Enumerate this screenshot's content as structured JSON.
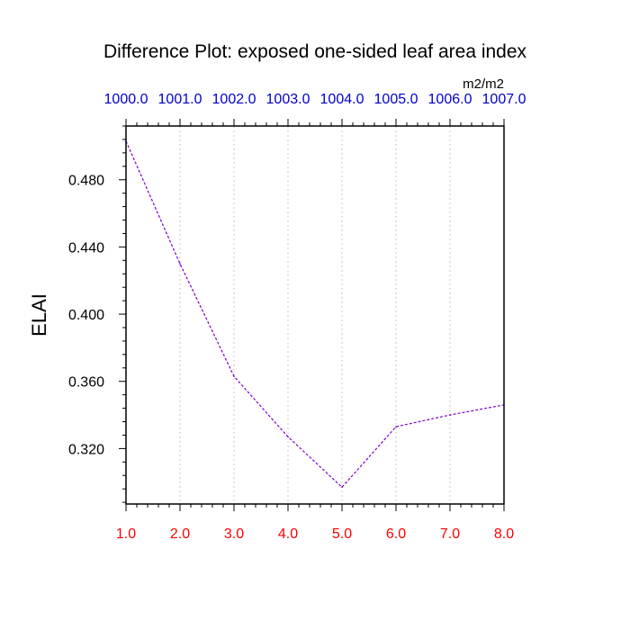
{
  "chart_data": {
    "type": "line",
    "title": "Difference Plot: exposed one-sided leaf area index",
    "units": "m2/m2",
    "ylabel": "ELAI",
    "xlabel": "",
    "x": [
      1.0,
      2.0,
      3.0,
      4.0,
      5.0,
      6.0,
      7.0,
      8.0
    ],
    "xlim": [
      1.0,
      8.0
    ],
    "ylim": [
      0.287,
      0.512
    ],
    "bottom_ticks": [
      "1.0",
      "2.0",
      "3.0",
      "4.0",
      "5.0",
      "6.0",
      "7.0",
      "8.0"
    ],
    "top_ticks": [
      "1000.0",
      "1001.0",
      "1002.0",
      "1003.0",
      "1004.0",
      "1005.0",
      "1006.0",
      "1007.0"
    ],
    "y_ticks": [
      0.32,
      0.36,
      0.4,
      0.44,
      0.48
    ],
    "y_tick_labels": [
      "0.320",
      "0.360",
      "0.400",
      "0.440",
      "0.480"
    ],
    "grid": "vertical dotted",
    "series": [
      {
        "values": [
          0.503,
          0.43,
          0.363,
          0.327,
          0.297,
          0.333,
          0.34,
          0.346
        ],
        "color": "#7b00cc",
        "dash": "dashed"
      }
    ],
    "colors": {
      "bottom_tick_labels": "#ff0000",
      "top_tick_labels": "#0000cc",
      "axes": "#000000",
      "grid": "#c8c8c8"
    }
  }
}
